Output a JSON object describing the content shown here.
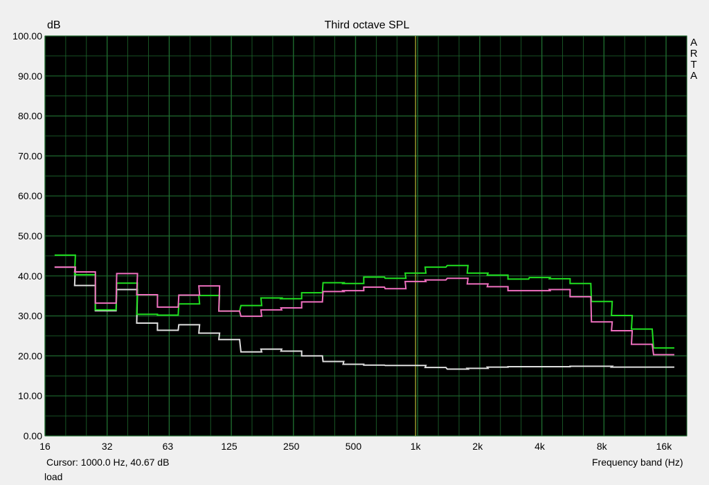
{
  "chart_data": {
    "type": "line",
    "title": "Third octave SPL",
    "ylabel": "dB",
    "xlabel": "Frequency band (Hz)",
    "ylim": [
      0,
      100
    ],
    "xlim_hz": [
      16,
      20000
    ],
    "x_scale": "log",
    "grid": true,
    "watermark": "ARTA",
    "y_ticks": [
      "0.00",
      "10.00",
      "20.00",
      "30.00",
      "40.00",
      "50.00",
      "60.00",
      "70.00",
      "80.00",
      "90.00",
      "100.00"
    ],
    "x_ticks": [
      {
        "v": 16,
        "l": "16"
      },
      {
        "v": 32,
        "l": "32"
      },
      {
        "v": 63,
        "l": "63"
      },
      {
        "v": 125,
        "l": "125"
      },
      {
        "v": 250,
        "l": "250"
      },
      {
        "v": 500,
        "l": "500"
      },
      {
        "v": 1000,
        "l": "1k"
      },
      {
        "v": 2000,
        "l": "2k"
      },
      {
        "v": 4000,
        "l": "4k"
      },
      {
        "v": 8000,
        "l": "8k"
      },
      {
        "v": 16000,
        "l": "16k"
      }
    ],
    "bands_hz": [
      20,
      25,
      31.5,
      40,
      50,
      63,
      80,
      100,
      125,
      160,
      200,
      250,
      315,
      400,
      500,
      630,
      800,
      1000,
      1250,
      1600,
      2000,
      2500,
      3150,
      4000,
      5000,
      6300,
      8000,
      10000,
      12500,
      16000
    ],
    "series": [
      {
        "color": "#e0e0e0",
        "values": [
          42.2,
          37.6,
          31.3,
          36.6,
          28.2,
          26.4,
          27.8,
          25.7,
          24.1,
          21.0,
          21.7,
          21.2,
          20.0,
          18.6,
          17.9,
          17.7,
          17.6,
          17.6,
          17.1,
          16.7,
          16.9,
          17.2,
          17.3,
          17.3,
          17.3,
          17.4,
          17.4,
          17.2,
          17.2,
          17.2
        ]
      },
      {
        "color": "#20e020",
        "values": [
          45.2,
          40.3,
          31.5,
          38.2,
          30.4,
          30.2,
          33.0,
          35.1,
          31.2,
          32.6,
          34.5,
          34.3,
          35.8,
          38.3,
          38.1,
          39.7,
          39.4,
          40.7,
          42.2,
          42.6,
          40.7,
          40.2,
          39.2,
          39.6,
          39.3,
          38.1,
          33.6,
          30.1,
          26.7,
          22.0
        ]
      },
      {
        "color": "#f070c0",
        "values": [
          42.2,
          41.0,
          33.2,
          40.6,
          35.3,
          32.2,
          35.2,
          37.5,
          31.2,
          29.9,
          31.5,
          32.0,
          33.5,
          36.1,
          36.3,
          37.2,
          36.8,
          38.6,
          39.0,
          39.4,
          38.0,
          37.3,
          36.3,
          36.3,
          36.6,
          34.8,
          28.5,
          26.3,
          22.9,
          20.3
        ]
      }
    ],
    "cursor_hz": 1000,
    "cursor_color": "#e0e040",
    "grid_color": "#1e6a2e"
  },
  "status": {
    "cursor": "Cursor:  1000.0 Hz, 40.67 dB",
    "mode": "load"
  }
}
